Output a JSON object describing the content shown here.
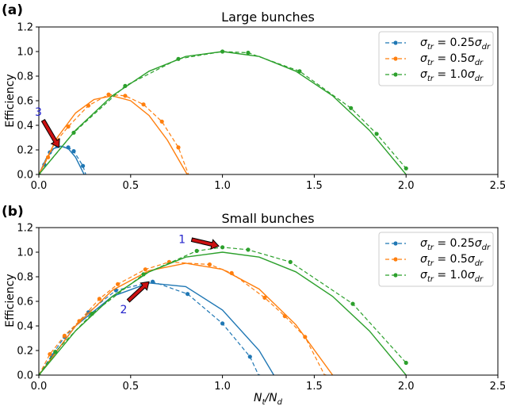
{
  "figure": {
    "panel_labels": [
      "(a)",
      "(b)"
    ]
  },
  "chart_data": [
    {
      "type": "line",
      "panel": "(a)",
      "title": "Large bunches",
      "xlabel": "",
      "ylabel": "Efficiency",
      "xlim": [
        0.0,
        2.5
      ],
      "ylim": [
        0.0,
        1.2
      ],
      "xticks": [
        "0.0",
        "0.5",
        "1.0",
        "1.5",
        "2.0",
        "2.5"
      ],
      "yticks": [
        "0.0",
        "0.2",
        "0.4",
        "0.6",
        "0.8",
        "1.0",
        "1.2"
      ],
      "legend_position": "top-right",
      "legend": [
        "σtr = 0.25σdr",
        "σtr = 0.5σdr",
        "σtr = 1.0σdr"
      ],
      "series": [
        {
          "name": "σtr = 0.25σdr",
          "color": "#1f77b4",
          "points": [
            [
              0.0,
              0.0
            ],
            [
              0.03,
              0.08
            ],
            [
              0.06,
              0.18
            ],
            [
              0.1,
              0.23
            ],
            [
              0.16,
              0.22
            ],
            [
              0.19,
              0.19
            ],
            [
              0.24,
              0.07
            ],
            [
              0.26,
              -0.02
            ]
          ],
          "fit": [
            [
              0.0,
              0.0
            ],
            [
              0.04,
              0.13
            ],
            [
              0.08,
              0.21
            ],
            [
              0.12,
              0.23
            ],
            [
              0.16,
              0.21
            ],
            [
              0.2,
              0.14
            ],
            [
              0.24,
              0.02
            ],
            [
              0.26,
              -0.04
            ]
          ]
        },
        {
          "name": "σtr = 0.5σdr",
          "color": "#ff7f0e",
          "points": [
            [
              0.0,
              0.0
            ],
            [
              0.05,
              0.14
            ],
            [
              0.09,
              0.26
            ],
            [
              0.16,
              0.39
            ],
            [
              0.27,
              0.56
            ],
            [
              0.38,
              0.65
            ],
            [
              0.47,
              0.64
            ],
            [
              0.57,
              0.57
            ],
            [
              0.67,
              0.43
            ],
            [
              0.76,
              0.22
            ],
            [
              0.82,
              -0.02
            ]
          ],
          "fit": [
            [
              0.0,
              0.0
            ],
            [
              0.1,
              0.3
            ],
            [
              0.2,
              0.5
            ],
            [
              0.3,
              0.61
            ],
            [
              0.4,
              0.64
            ],
            [
              0.5,
              0.6
            ],
            [
              0.6,
              0.48
            ],
            [
              0.7,
              0.28
            ],
            [
              0.8,
              0.02
            ],
            [
              0.83,
              -0.05
            ]
          ]
        },
        {
          "name": "σtr = 1.0σdr",
          "color": "#2ca02c",
          "points": [
            [
              0.0,
              0.0
            ],
            [
              0.19,
              0.34
            ],
            [
              0.47,
              0.72
            ],
            [
              0.76,
              0.94
            ],
            [
              1.0,
              1.0
            ],
            [
              1.14,
              0.99
            ],
            [
              1.42,
              0.84
            ],
            [
              1.7,
              0.54
            ],
            [
              1.84,
              0.33
            ],
            [
              2.0,
              0.05
            ]
          ],
          "fit": [
            [
              0.0,
              0.0
            ],
            [
              0.2,
              0.36
            ],
            [
              0.4,
              0.64
            ],
            [
              0.6,
              0.84
            ],
            [
              0.8,
              0.96
            ],
            [
              1.0,
              1.0
            ],
            [
              1.2,
              0.96
            ],
            [
              1.4,
              0.84
            ],
            [
              1.6,
              0.64
            ],
            [
              1.8,
              0.36
            ],
            [
              2.0,
              0.0
            ]
          ]
        }
      ],
      "annotations": [
        {
          "text": "3",
          "arrow_tip": [
            0.11,
            0.22
          ]
        }
      ]
    },
    {
      "type": "line",
      "panel": "(b)",
      "title": "Small bunches",
      "xlabel": "Nt/Nd",
      "ylabel": "Efficiency",
      "xlim": [
        0.0,
        2.5
      ],
      "ylim": [
        0.0,
        1.2
      ],
      "xticks": [
        "0.0",
        "0.5",
        "1.0",
        "1.5",
        "2.0",
        "2.5"
      ],
      "yticks": [
        "0.0",
        "0.2",
        "0.4",
        "0.6",
        "0.8",
        "1.0",
        "1.2"
      ],
      "legend_position": "top-right",
      "legend": [
        "σtr = 0.25σdr",
        "σtr = 0.5σdr",
        "σtr = 1.0σdr"
      ],
      "series": [
        {
          "name": "σtr = 0.25σdr",
          "color": "#1f77b4",
          "points": [
            [
              0.0,
              0.0
            ],
            [
              0.07,
              0.16
            ],
            [
              0.14,
              0.31
            ],
            [
              0.27,
              0.51
            ],
            [
              0.42,
              0.69
            ],
            [
              0.62,
              0.76
            ],
            [
              0.81,
              0.66
            ],
            [
              1.0,
              0.42
            ],
            [
              1.15,
              0.15
            ],
            [
              1.2,
              -0.01
            ]
          ],
          "fit": [
            [
              0.0,
              0.0
            ],
            [
              0.2,
              0.4
            ],
            [
              0.4,
              0.64
            ],
            [
              0.6,
              0.75
            ],
            [
              0.8,
              0.72
            ],
            [
              1.0,
              0.53
            ],
            [
              1.2,
              0.2
            ],
            [
              1.28,
              0.0
            ]
          ]
        },
        {
          "name": "σtr = 0.5σdr",
          "color": "#ff7f0e",
          "points": [
            [
              0.0,
              0.0
            ],
            [
              0.06,
              0.17
            ],
            [
              0.14,
              0.32
            ],
            [
              0.22,
              0.44
            ],
            [
              0.33,
              0.62
            ],
            [
              0.43,
              0.74
            ],
            [
              0.58,
              0.86
            ],
            [
              0.71,
              0.92
            ],
            [
              0.93,
              0.9
            ],
            [
              1.05,
              0.83
            ],
            [
              1.23,
              0.63
            ],
            [
              1.34,
              0.48
            ],
            [
              1.45,
              0.31
            ],
            [
              1.56,
              -0.01
            ]
          ],
          "fit": [
            [
              0.0,
              0.0
            ],
            [
              0.2,
              0.4
            ],
            [
              0.4,
              0.69
            ],
            [
              0.6,
              0.85
            ],
            [
              0.8,
              0.91
            ],
            [
              1.0,
              0.86
            ],
            [
              1.2,
              0.7
            ],
            [
              1.4,
              0.41
            ],
            [
              1.6,
              0.0
            ]
          ]
        },
        {
          "name": "σtr = 1.0σdr",
          "color": "#2ca02c",
          "points": [
            [
              0.0,
              0.0
            ],
            [
              0.09,
              0.19
            ],
            [
              0.29,
              0.5
            ],
            [
              0.57,
              0.82
            ],
            [
              0.86,
              1.01
            ],
            [
              1.0,
              1.04
            ],
            [
              1.14,
              1.02
            ],
            [
              1.37,
              0.92
            ],
            [
              1.71,
              0.58
            ],
            [
              2.0,
              0.1
            ]
          ],
          "fit": [
            [
              0.0,
              0.0
            ],
            [
              0.2,
              0.36
            ],
            [
              0.4,
              0.64
            ],
            [
              0.6,
              0.84
            ],
            [
              0.8,
              0.96
            ],
            [
              1.0,
              1.0
            ],
            [
              1.2,
              0.96
            ],
            [
              1.4,
              0.84
            ],
            [
              1.6,
              0.64
            ],
            [
              1.8,
              0.36
            ],
            [
              2.0,
              0.0
            ]
          ]
        }
      ],
      "annotations": [
        {
          "text": "1",
          "arrow_tip": [
            0.98,
            1.05
          ]
        },
        {
          "text": "2",
          "arrow_tip": [
            0.6,
            0.76
          ]
        }
      ]
    }
  ]
}
